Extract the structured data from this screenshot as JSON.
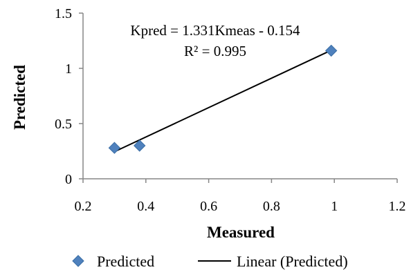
{
  "chart_data": {
    "type": "scatter",
    "title": "",
    "xlabel": "Measured",
    "ylabel": "Predicted",
    "xlim": [
      0.2,
      1.2
    ],
    "ylim": [
      0,
      1.5
    ],
    "xticks": [
      "0.2",
      "0.4",
      "0.6",
      "0.8",
      "1",
      "1.2"
    ],
    "yticks": [
      "0",
      "0.5",
      "1",
      "1.5"
    ],
    "grid": false,
    "legend_position": "bottom",
    "series": [
      {
        "name": "Predicted",
        "marker": "diamond",
        "color": "#4f81bd",
        "points": [
          {
            "x": 0.3,
            "y": 0.28
          },
          {
            "x": 0.38,
            "y": 0.3
          },
          {
            "x": 0.99,
            "y": 1.16
          }
        ]
      }
    ],
    "trendline": {
      "name": "Linear (Predicted)",
      "slope": 1.331,
      "intercept": -0.154,
      "x_range": [
        0.3,
        0.99
      ],
      "color": "#000000"
    },
    "annotations": {
      "equation": "Kpred = 1.331Kmeas - 0.154",
      "r_squared": "R² = 0.995"
    }
  }
}
